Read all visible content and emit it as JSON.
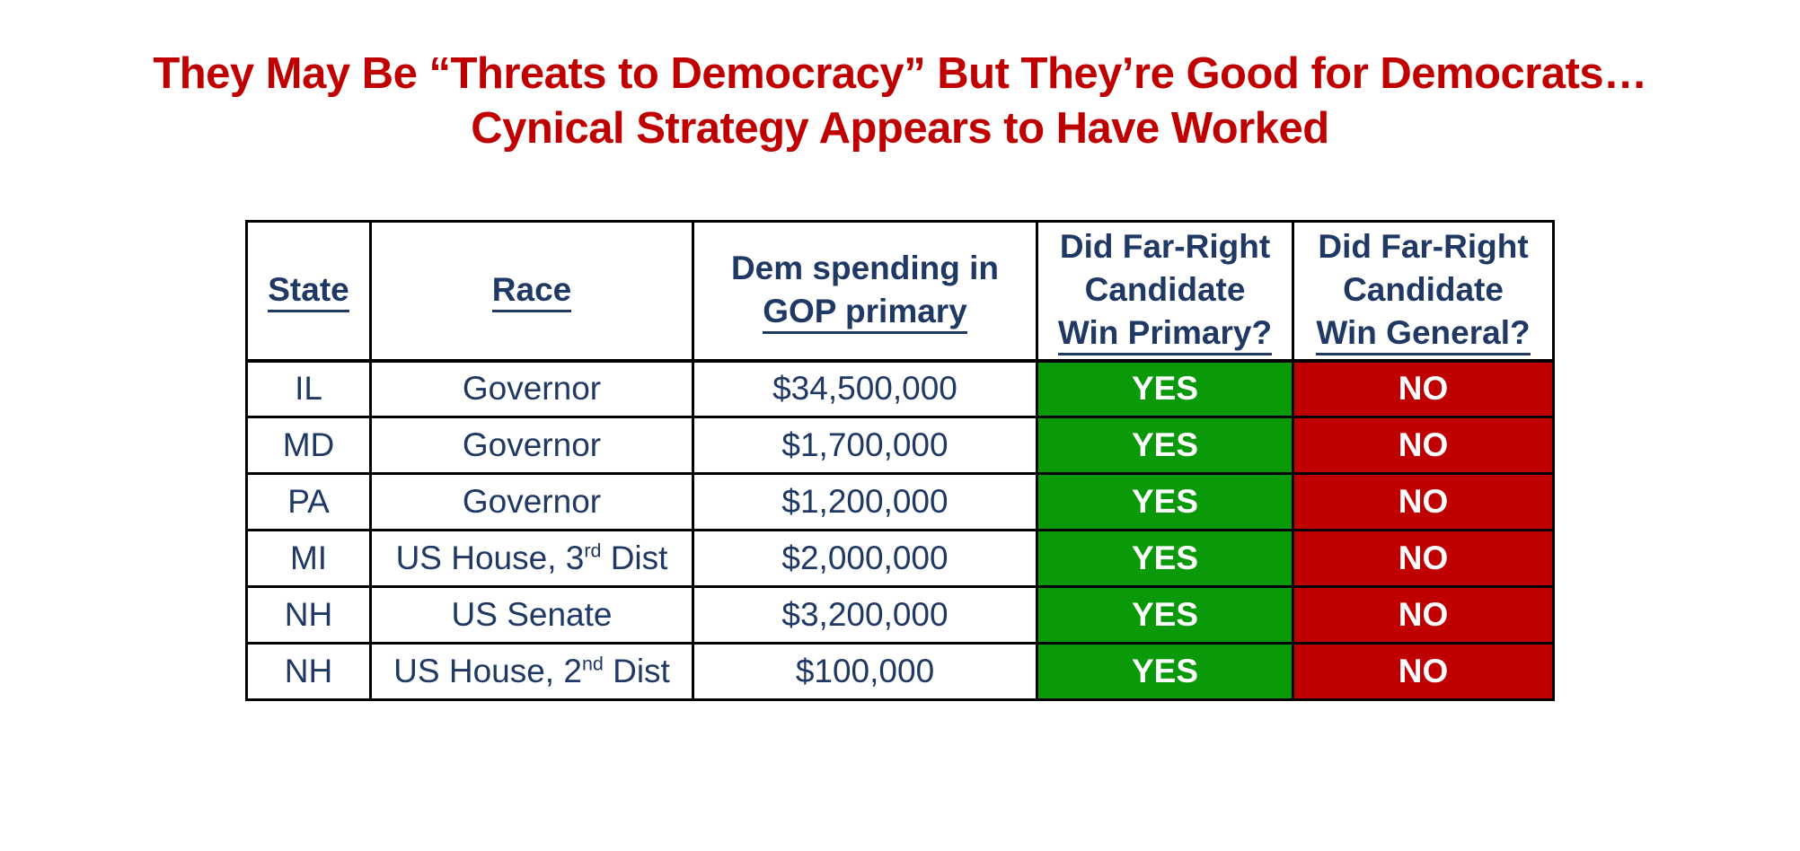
{
  "title": {
    "line1": "They May Be “Threats to Democracy” But They’re Good for Democrats…",
    "line2": "Cynical Strategy Appears to Have Worked",
    "color": "#C00000"
  },
  "table": {
    "colors": {
      "text": "#1F3864",
      "border": "#000000",
      "yes_bg": "#099909",
      "no_bg": "#C00000",
      "answer_text": "#FFFFFF"
    },
    "columns": [
      {
        "key": "state",
        "lines": [
          {
            "text": "State",
            "underline": true
          }
        ]
      },
      {
        "key": "race",
        "lines": [
          {
            "text": "Race",
            "underline": true
          }
        ]
      },
      {
        "key": "spending",
        "lines": [
          {
            "text": "Dem spending in",
            "underline": false
          },
          {
            "text": "GOP primary",
            "underline": true
          }
        ]
      },
      {
        "key": "win-primary",
        "lines": [
          {
            "text": "Did Far-Right",
            "underline": false
          },
          {
            "text": "Candidate",
            "underline": false
          },
          {
            "text": "Win Primary?",
            "underline": true
          }
        ]
      },
      {
        "key": "win-general",
        "lines": [
          {
            "text": "Did Far-Right",
            "underline": false
          },
          {
            "text": "Candidate",
            "underline": false
          },
          {
            "text": "Win General?",
            "underline": true
          }
        ]
      }
    ],
    "rows": [
      {
        "state": "IL",
        "race": {
          "pre": "Governor",
          "sup": "",
          "post": ""
        },
        "spending": "$34,500,000",
        "win_primary": "YES",
        "win_general": "NO"
      },
      {
        "state": "MD",
        "race": {
          "pre": "Governor",
          "sup": "",
          "post": ""
        },
        "spending": "$1,700,000",
        "win_primary": "YES",
        "win_general": "NO"
      },
      {
        "state": "PA",
        "race": {
          "pre": "Governor",
          "sup": "",
          "post": ""
        },
        "spending": "$1,200,000",
        "win_primary": "YES",
        "win_general": "NO"
      },
      {
        "state": "MI",
        "race": {
          "pre": "US House, 3",
          "sup": "rd",
          "post": " Dist"
        },
        "spending": "$2,000,000",
        "win_primary": "YES",
        "win_general": "NO"
      },
      {
        "state": "NH",
        "race": {
          "pre": "US Senate",
          "sup": "",
          "post": ""
        },
        "spending": "$3,200,000",
        "win_primary": "YES",
        "win_general": "NO"
      },
      {
        "state": "NH",
        "race": {
          "pre": "US House, 2",
          "sup": "nd",
          "post": " Dist"
        },
        "spending": "$100,000",
        "win_primary": "YES",
        "win_general": "NO"
      }
    ]
  }
}
